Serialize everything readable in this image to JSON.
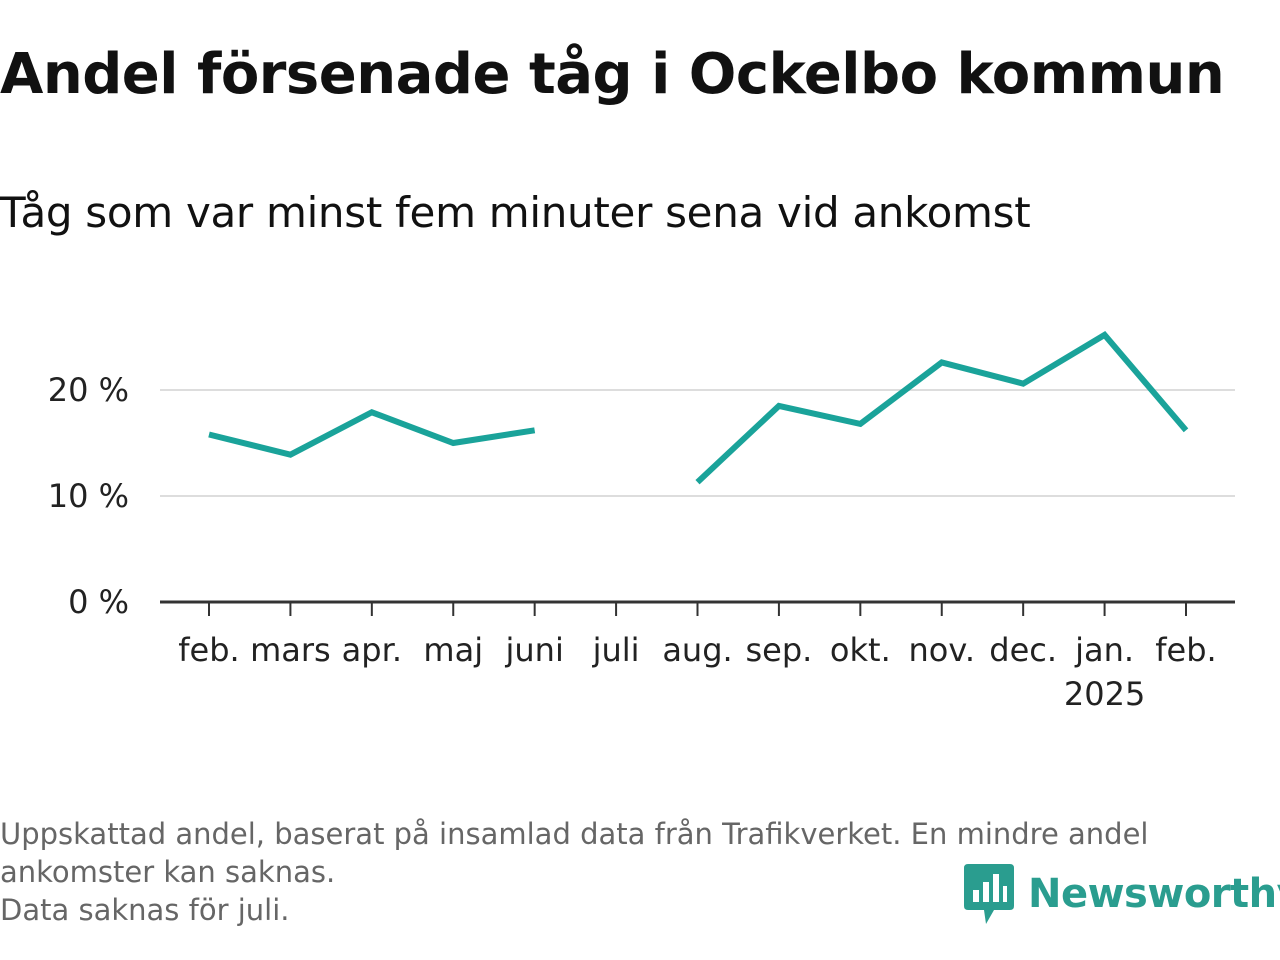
{
  "title": "Andel försenade tåg i Ockelbo kommun",
  "subtitle": "Tåg som var minst fem minuter sena vid ankomst",
  "footnote": [
    "Uppskattad andel, baserat på insamlad data från Trafikverket. En mindre andel",
    "ankomster kan saknas.",
    "Data saknas för juli."
  ],
  "brand": {
    "name": "Newsworthy",
    "icon": "newsworthy-logo-icon",
    "color": "#2a9d8f"
  },
  "chart_data": {
    "type": "line",
    "title": "Andel försenade tåg i Ockelbo kommun",
    "subtitle": "Tåg som var minst fem minuter sena vid ankomst",
    "categories": [
      "feb.",
      "mars",
      "apr.",
      "maj",
      "juni",
      "juli",
      "aug.",
      "sep.",
      "okt.",
      "nov.",
      "dec.",
      "jan.",
      "feb."
    ],
    "year_labels": [
      "",
      "",
      "",
      "",
      "",
      "",
      "",
      "",
      "",
      "",
      "",
      "2025",
      ""
    ],
    "series": [
      {
        "values": [
          15.8,
          13.9,
          17.9,
          15.0,
          16.2,
          null,
          11.3,
          18.5,
          16.8,
          22.6,
          20.6,
          25.2,
          16.2
        ],
        "color": "#1aa39a"
      }
    ],
    "yticks": [
      0,
      10,
      20
    ],
    "ytick_labels": [
      "0 %",
      "10 %",
      "20 %"
    ],
    "ylim": [
      0,
      25
    ],
    "grid": true,
    "legend": "none"
  }
}
